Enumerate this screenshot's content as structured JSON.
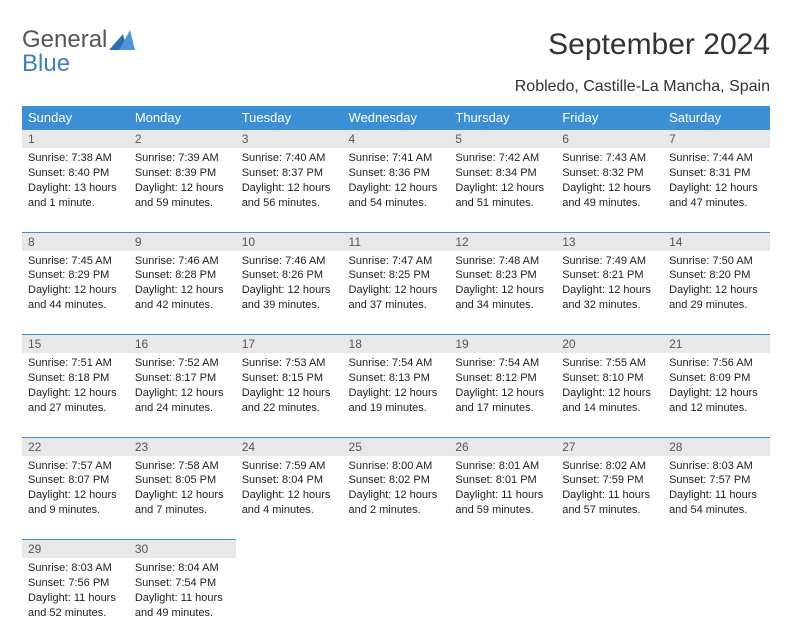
{
  "logo": {
    "line1": "General",
    "line2": "Blue"
  },
  "title": "September 2024",
  "location": "Robledo, Castille-La Mancha, Spain",
  "dow": [
    "Sunday",
    "Monday",
    "Tuesday",
    "Wednesday",
    "Thursday",
    "Friday",
    "Saturday"
  ],
  "header_bg": "#3b8fd4",
  "header_text": "#ffffff",
  "daynum_bg": "#e8e8e8",
  "week_border": "#3b8fd4",
  "weeks": [
    [
      {
        "n": "1",
        "sunrise": "7:38 AM",
        "sunset": "8:40 PM",
        "daylight": "13 hours and 1 minute."
      },
      {
        "n": "2",
        "sunrise": "7:39 AM",
        "sunset": "8:39 PM",
        "daylight": "12 hours and 59 minutes."
      },
      {
        "n": "3",
        "sunrise": "7:40 AM",
        "sunset": "8:37 PM",
        "daylight": "12 hours and 56 minutes."
      },
      {
        "n": "4",
        "sunrise": "7:41 AM",
        "sunset": "8:36 PM",
        "daylight": "12 hours and 54 minutes."
      },
      {
        "n": "5",
        "sunrise": "7:42 AM",
        "sunset": "8:34 PM",
        "daylight": "12 hours and 51 minutes."
      },
      {
        "n": "6",
        "sunrise": "7:43 AM",
        "sunset": "8:32 PM",
        "daylight": "12 hours and 49 minutes."
      },
      {
        "n": "7",
        "sunrise": "7:44 AM",
        "sunset": "8:31 PM",
        "daylight": "12 hours and 47 minutes."
      }
    ],
    [
      {
        "n": "8",
        "sunrise": "7:45 AM",
        "sunset": "8:29 PM",
        "daylight": "12 hours and 44 minutes."
      },
      {
        "n": "9",
        "sunrise": "7:46 AM",
        "sunset": "8:28 PM",
        "daylight": "12 hours and 42 minutes."
      },
      {
        "n": "10",
        "sunrise": "7:46 AM",
        "sunset": "8:26 PM",
        "daylight": "12 hours and 39 minutes."
      },
      {
        "n": "11",
        "sunrise": "7:47 AM",
        "sunset": "8:25 PM",
        "daylight": "12 hours and 37 minutes."
      },
      {
        "n": "12",
        "sunrise": "7:48 AM",
        "sunset": "8:23 PM",
        "daylight": "12 hours and 34 minutes."
      },
      {
        "n": "13",
        "sunrise": "7:49 AM",
        "sunset": "8:21 PM",
        "daylight": "12 hours and 32 minutes."
      },
      {
        "n": "14",
        "sunrise": "7:50 AM",
        "sunset": "8:20 PM",
        "daylight": "12 hours and 29 minutes."
      }
    ],
    [
      {
        "n": "15",
        "sunrise": "7:51 AM",
        "sunset": "8:18 PM",
        "daylight": "12 hours and 27 minutes."
      },
      {
        "n": "16",
        "sunrise": "7:52 AM",
        "sunset": "8:17 PM",
        "daylight": "12 hours and 24 minutes."
      },
      {
        "n": "17",
        "sunrise": "7:53 AM",
        "sunset": "8:15 PM",
        "daylight": "12 hours and 22 minutes."
      },
      {
        "n": "18",
        "sunrise": "7:54 AM",
        "sunset": "8:13 PM",
        "daylight": "12 hours and 19 minutes."
      },
      {
        "n": "19",
        "sunrise": "7:54 AM",
        "sunset": "8:12 PM",
        "daylight": "12 hours and 17 minutes."
      },
      {
        "n": "20",
        "sunrise": "7:55 AM",
        "sunset": "8:10 PM",
        "daylight": "12 hours and 14 minutes."
      },
      {
        "n": "21",
        "sunrise": "7:56 AM",
        "sunset": "8:09 PM",
        "daylight": "12 hours and 12 minutes."
      }
    ],
    [
      {
        "n": "22",
        "sunrise": "7:57 AM",
        "sunset": "8:07 PM",
        "daylight": "12 hours and 9 minutes."
      },
      {
        "n": "23",
        "sunrise": "7:58 AM",
        "sunset": "8:05 PM",
        "daylight": "12 hours and 7 minutes."
      },
      {
        "n": "24",
        "sunrise": "7:59 AM",
        "sunset": "8:04 PM",
        "daylight": "12 hours and 4 minutes."
      },
      {
        "n": "25",
        "sunrise": "8:00 AM",
        "sunset": "8:02 PM",
        "daylight": "12 hours and 2 minutes."
      },
      {
        "n": "26",
        "sunrise": "8:01 AM",
        "sunset": "8:01 PM",
        "daylight": "11 hours and 59 minutes."
      },
      {
        "n": "27",
        "sunrise": "8:02 AM",
        "sunset": "7:59 PM",
        "daylight": "11 hours and 57 minutes."
      },
      {
        "n": "28",
        "sunrise": "8:03 AM",
        "sunset": "7:57 PM",
        "daylight": "11 hours and 54 minutes."
      }
    ],
    [
      {
        "n": "29",
        "sunrise": "8:03 AM",
        "sunset": "7:56 PM",
        "daylight": "11 hours and 52 minutes."
      },
      {
        "n": "30",
        "sunrise": "8:04 AM",
        "sunset": "7:54 PM",
        "daylight": "11 hours and 49 minutes."
      },
      null,
      null,
      null,
      null,
      null
    ]
  ]
}
